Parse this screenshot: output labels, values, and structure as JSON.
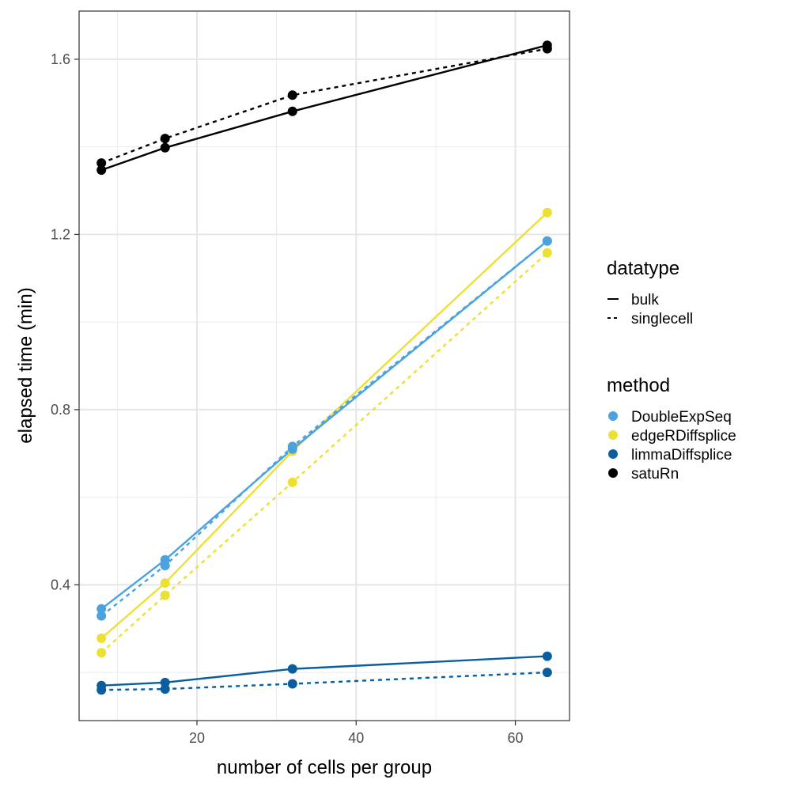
{
  "chart_data": {
    "type": "line",
    "xlabel": "number of cells per group",
    "ylabel": "elapsed  time (min)",
    "xlim": [
      5.2,
      66.8
    ],
    "ylim": [
      0.09,
      1.71
    ],
    "x_ticks": [
      20,
      40,
      60
    ],
    "y_ticks": [
      0.4,
      0.8,
      1.2,
      1.6
    ],
    "x_tick_labels": [
      "20",
      "40",
      "60"
    ],
    "y_tick_labels": [
      "0.4",
      "0.8",
      "1.2",
      "1.6"
    ],
    "grid": true,
    "legend_position": "right",
    "legends": {
      "datatype": {
        "title": "datatype",
        "entries": [
          {
            "label": "bulk",
            "linetype": "solid"
          },
          {
            "label": "singlecell",
            "linetype": "dashed"
          }
        ]
      },
      "method": {
        "title": "method",
        "entries": [
          {
            "label": "DoubleExpSeq",
            "color": "#4aa3df"
          },
          {
            "label": "edgeRDiffsplice",
            "color": "#ece133"
          },
          {
            "label": "limmaDiffsplice",
            "color": "#0a5ea0"
          },
          {
            "label": "satuRn",
            "color": "#000000"
          }
        ]
      }
    },
    "series": [
      {
        "method": "satuRn",
        "datatype": "bulk",
        "color": "#000000",
        "linetype": "solid",
        "x": [
          8,
          16,
          32,
          64
        ],
        "y": [
          1.347,
          1.398,
          1.481,
          1.632
        ]
      },
      {
        "method": "satuRn",
        "datatype": "singlecell",
        "color": "#000000",
        "linetype": "dashed",
        "x": [
          8,
          16,
          32,
          64
        ],
        "y": [
          1.363,
          1.419,
          1.518,
          1.624
        ]
      },
      {
        "method": "edgeRDiffsplice",
        "datatype": "bulk",
        "color": "#ece133",
        "linetype": "solid",
        "x": [
          8,
          16,
          32,
          64
        ],
        "y": [
          0.278,
          0.404,
          0.705,
          1.25
        ]
      },
      {
        "method": "edgeRDiffsplice",
        "datatype": "singlecell",
        "color": "#ece133",
        "linetype": "dashed",
        "x": [
          8,
          16,
          32,
          64
        ],
        "y": [
          0.245,
          0.376,
          0.634,
          1.158
        ]
      },
      {
        "method": "DoubleExpSeq",
        "datatype": "bulk",
        "color": "#4aa3df",
        "linetype": "solid",
        "x": [
          8,
          16,
          32,
          64
        ],
        "y": [
          0.345,
          0.457,
          0.71,
          1.185
        ]
      },
      {
        "method": "DoubleExpSeq",
        "datatype": "singlecell",
        "color": "#4aa3df",
        "linetype": "dashed",
        "x": [
          8,
          16,
          32,
          64
        ],
        "y": [
          0.329,
          0.444,
          0.716,
          1.185
        ]
      },
      {
        "method": "limmaDiffsplice",
        "datatype": "bulk",
        "color": "#0a5ea0",
        "linetype": "solid",
        "x": [
          8,
          16,
          32,
          64
        ],
        "y": [
          0.17,
          0.177,
          0.208,
          0.237
        ]
      },
      {
        "method": "limmaDiffsplice",
        "datatype": "singlecell",
        "color": "#0a5ea0",
        "linetype": "dashed",
        "x": [
          8,
          16,
          32,
          64
        ],
        "y": [
          0.16,
          0.162,
          0.174,
          0.2
        ]
      }
    ]
  }
}
